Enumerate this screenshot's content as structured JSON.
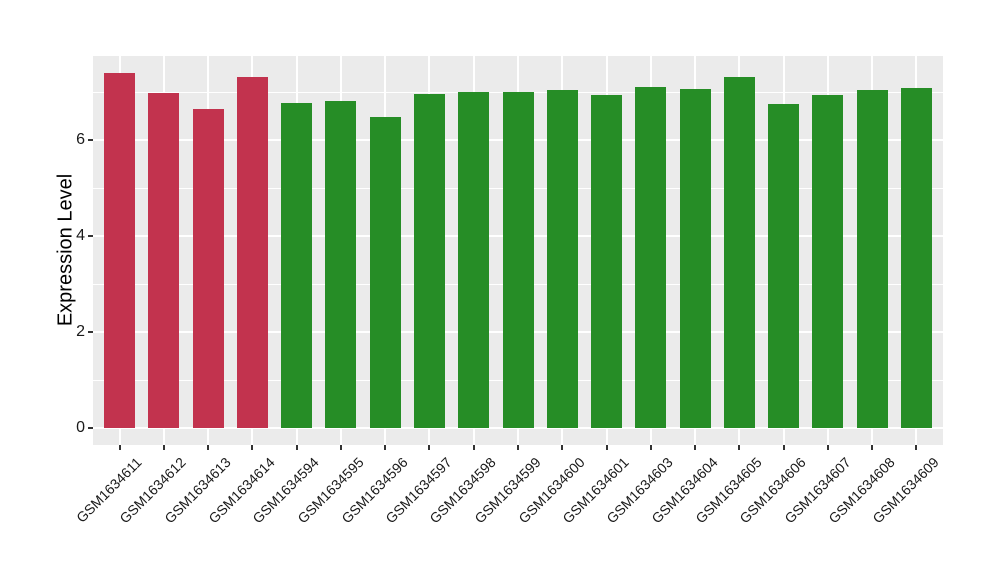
{
  "chart_data": {
    "type": "bar",
    "title": "",
    "xlabel": "",
    "ylabel": "Expression Level",
    "categories": [
      "GSM1634611",
      "GSM1634612",
      "GSM1634613",
      "GSM1634614",
      "GSM1634594",
      "GSM1634595",
      "GSM1634596",
      "GSM1634597",
      "GSM1634598",
      "GSM1634599",
      "GSM1634600",
      "GSM1634601",
      "GSM1634603",
      "GSM1634604",
      "GSM1634605",
      "GSM1634606",
      "GSM1634607",
      "GSM1634608",
      "GSM1634609"
    ],
    "values": [
      7.4,
      6.98,
      6.65,
      7.31,
      6.77,
      6.81,
      6.48,
      6.96,
      7.0,
      7.0,
      7.04,
      6.94,
      7.1,
      7.06,
      7.31,
      6.75,
      6.94,
      7.04,
      7.08
    ],
    "bar_colors": [
      "#C2334E",
      "#C2334E",
      "#C2334E",
      "#C2334E",
      "#268D26",
      "#268D26",
      "#268D26",
      "#268D26",
      "#268D26",
      "#268D26",
      "#268D26",
      "#268D26",
      "#268D26",
      "#268D26",
      "#268D26",
      "#268D26",
      "#268D26",
      "#268D26",
      "#268D26"
    ],
    "group_colors": {
      "highlighted": "#C2334E",
      "default": "#268D26"
    },
    "y_ticks": [
      0,
      2,
      4,
      6
    ],
    "y_minor_ticks": [
      1,
      3,
      5,
      7
    ],
    "ylim": [
      -0.35,
      7.75
    ],
    "grid": true,
    "legend": "none",
    "panel_background": "#EBEBEB",
    "grid_color": "#FFFFFF",
    "tick_color": "#333333",
    "text_color": "#1A1A1A"
  }
}
